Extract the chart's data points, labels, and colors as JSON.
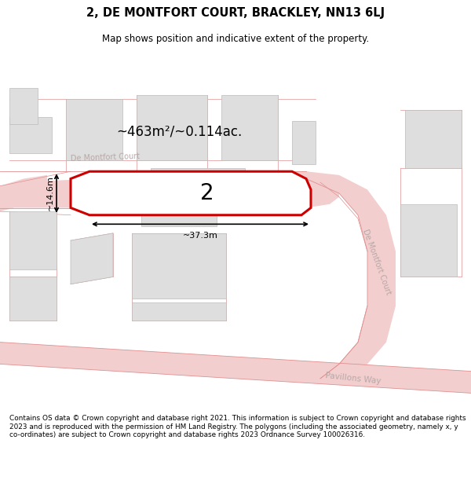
{
  "title_line1": "2, DE MONTFORT COURT, BRACKLEY, NN13 6LJ",
  "title_line2": "Map shows position and indicative extent of the property.",
  "footer_text": "Contains OS data © Crown copyright and database right 2021. This information is subject to Crown copyright and database rights 2023 and is reproduced with the permission of HM Land Registry. The polygons (including the associated geometry, namely x, y co-ordinates) are subject to Crown copyright and database rights 2023 Ordnance Survey 100026316.",
  "area_label": "~463m²/~0.114ac.",
  "width_label": "~37.3m",
  "height_label": "~14.6m",
  "plot_number": "2",
  "bg": "#ffffff",
  "map_bg": "#f7f7f7",
  "road_fill": "#f2cece",
  "road_line": "#e09090",
  "bld_fill": "#dedede",
  "bld_edge": "#bbbbbb",
  "plot_edge": "#cc0000",
  "plot_fill": "#ffffff",
  "road_lbl": "#b8a8a8",
  "dim_color": "#000000",
  "street_h": "De Montfort Court",
  "street_v": "De Montfort Court",
  "street_p": "Pavillons Way"
}
